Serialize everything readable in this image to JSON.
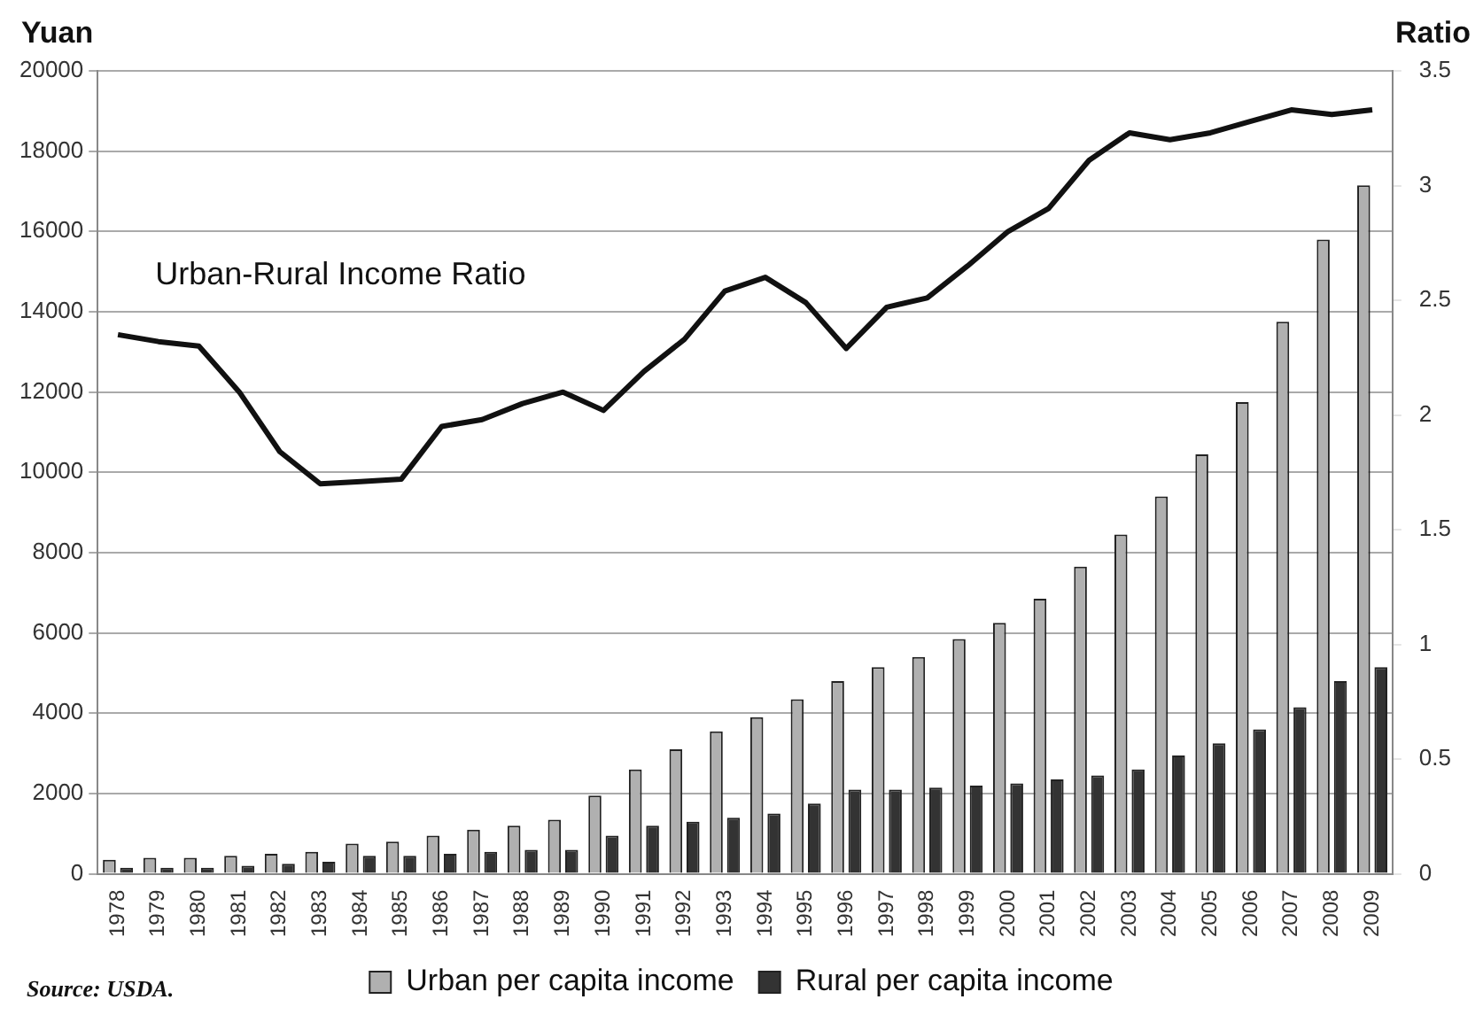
{
  "chart_data": {
    "type": "bar",
    "ylabel": "Yuan",
    "y2label": "Ratio",
    "categories": [
      "1978",
      "1979",
      "1980",
      "1981",
      "1982",
      "1983",
      "1984",
      "1985",
      "1986",
      "1987",
      "1988",
      "1989",
      "1990",
      "1991",
      "1992",
      "1993",
      "1994",
      "1995",
      "1996",
      "1997",
      "1998",
      "1999",
      "2000",
      "2001",
      "2002",
      "2003",
      "2004",
      "2005",
      "2006",
      "2007",
      "2008",
      "2009"
    ],
    "series": [
      {
        "name": "Urban per capita income",
        "color": "#b0b0b0",
        "values": [
          350,
          400,
          400,
          450,
          500,
          550,
          750,
          800,
          950,
          1100,
          1200,
          1350,
          1950,
          2600,
          3100,
          3550,
          3900,
          4350,
          4800,
          5150,
          5400,
          5850,
          6250,
          6850,
          7650,
          8450,
          9400,
          10450,
          11750,
          13750,
          15800,
          17150
        ]
      },
      {
        "name": "Rural per capita income",
        "color": "#333333",
        "values": [
          150,
          150,
          150,
          200,
          250,
          300,
          450,
          450,
          500,
          550,
          600,
          600,
          950,
          1200,
          1300,
          1400,
          1500,
          1750,
          2100,
          2100,
          2150,
          2200,
          2250,
          2350,
          2450,
          2600,
          2950,
          3250,
          3600,
          4150,
          4800,
          5150
        ]
      },
      {
        "name": "Urban-Rural Income Ratio",
        "type": "line",
        "axis": "y2",
        "color": "#111111",
        "values": [
          2.35,
          2.32,
          2.3,
          2.1,
          1.84,
          1.7,
          1.71,
          1.72,
          1.95,
          1.98,
          2.05,
          2.1,
          2.02,
          2.19,
          2.33,
          2.54,
          2.6,
          2.49,
          2.29,
          2.47,
          2.51,
          2.65,
          2.8,
          2.9,
          3.11,
          3.23,
          3.2,
          3.23,
          3.28,
          3.33,
          3.31,
          3.33
        ]
      }
    ],
    "ylim": [
      0,
      20000
    ],
    "yticks": [
      0,
      2000,
      4000,
      6000,
      8000,
      10000,
      12000,
      14000,
      16000,
      18000,
      20000
    ],
    "y2lim": [
      0,
      3.5
    ],
    "y2ticks": [
      0,
      0.5,
      1,
      1.5,
      2,
      2.5,
      3,
      3.5
    ],
    "grid": "y",
    "legend": "bottom",
    "marker": "none",
    "annotations": [
      "Source: USDA."
    ]
  }
}
